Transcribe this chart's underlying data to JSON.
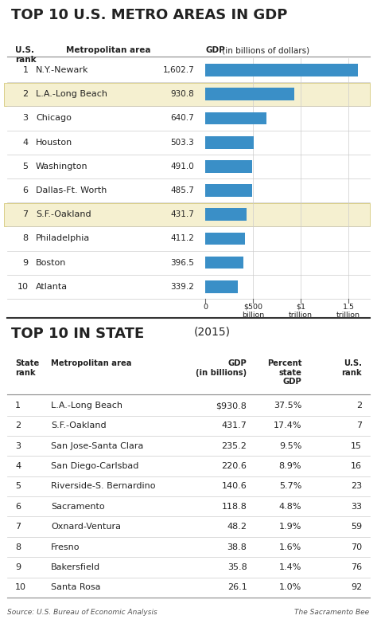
{
  "title1": "TOP 10 U.S. METRO AREAS IN GDP",
  "title2": "TOP 10 IN STATE",
  "title2_year": "(2015)",
  "us_ranks": [
    1,
    2,
    3,
    4,
    5,
    6,
    7,
    8,
    9,
    10
  ],
  "us_areas": [
    "N.Y.-Newark",
    "L.A.-Long Beach",
    "Chicago",
    "Houston",
    "Washington",
    "Dallas-Ft. Worth",
    "S.F.-Oakland",
    "Philadelphia",
    "Boston",
    "Atlanta"
  ],
  "us_gdp": [
    1602.7,
    930.8,
    640.7,
    503.3,
    491.0,
    485.7,
    431.7,
    411.2,
    396.5,
    339.2
  ],
  "us_gdp_labels": [
    "1,602.7",
    "930.8",
    "640.7",
    "503.3",
    "491.0",
    "485.7",
    "431.7",
    "411.2",
    "396.5",
    "339.2"
  ],
  "us_highlight": [
    1,
    6
  ],
  "highlight_color": "#f5f0d0",
  "highlight_edge_color": "#d4c87a",
  "bar_color": "#3a8fc7",
  "bar_max": 1700,
  "xtick_vals": [
    0,
    500,
    1000,
    1500
  ],
  "xtick_labels": [
    "0",
    "$500\nbillion",
    "$1\ntrillion",
    "1.5\ntrillion"
  ],
  "state_ranks": [
    1,
    2,
    3,
    4,
    5,
    6,
    7,
    8,
    9,
    10
  ],
  "state_areas": [
    "L.A.-Long Beach",
    "S.F.-Oakland",
    "San Jose-Santa Clara",
    "San Diego-Carlsbad",
    "Riverside-S. Bernardino",
    "Sacramento",
    "Oxnard-Ventura",
    "Fresno",
    "Bakersfield",
    "Santa Rosa"
  ],
  "state_gdp": [
    "$930.8",
    "431.7",
    "235.2",
    "220.6",
    "140.6",
    "118.8",
    "48.2",
    "38.8",
    "35.8",
    "26.1"
  ],
  "state_pct": [
    "37.5%",
    "17.4%",
    "9.5%",
    "8.9%",
    "5.7%",
    "4.8%",
    "1.9%",
    "1.6%",
    "1.4%",
    "1.0%"
  ],
  "state_us_rank": [
    "2",
    "7",
    "15",
    "16",
    "23",
    "33",
    "59",
    "70",
    "76",
    "92"
  ],
  "source": "Source: U.S. Bureau of Economic Analysis",
  "credit": "The Sacramento Bee",
  "bg_color": "#ffffff",
  "text_color": "#222222",
  "state_header_col1": "State\nrank",
  "state_header_col2": "Metropolitan area",
  "state_header_col3": "GDP\n(in billions)",
  "state_header_col4": "Percent\nstate\nGDP",
  "state_header_col5": "U.S.\nrank"
}
